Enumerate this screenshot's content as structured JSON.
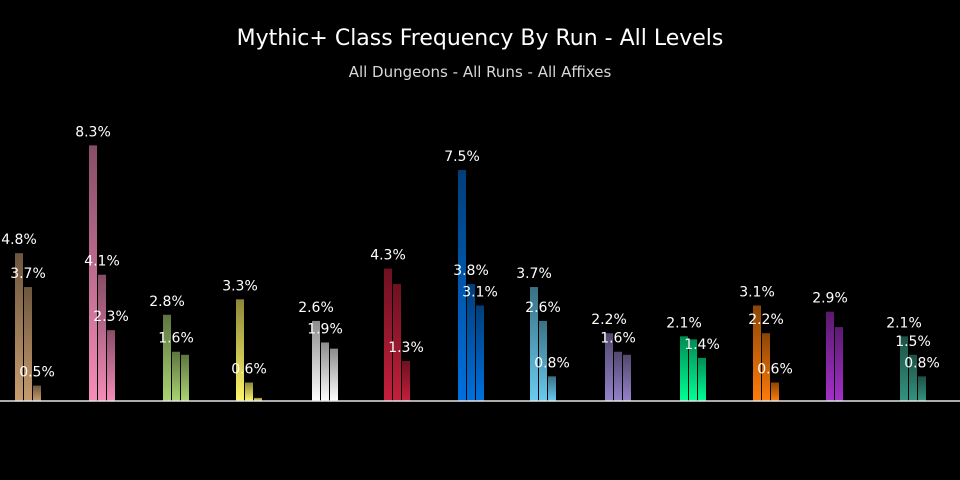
{
  "chart_data": {
    "type": "bar",
    "title": "Mythic+ Class Frequency By Run - All Levels",
    "subtitle": "All Dungeons - All Runs - All Affixes",
    "ylim": [
      0,
      10
    ],
    "value_suffix": "%",
    "groups": [
      {
        "color": "#C79C6E",
        "values": [
          4.8,
          3.7,
          0.5
        ],
        "labels": [
          "4.8%",
          "3.7%",
          "0.5%"
        ]
      },
      {
        "color": "#F58CBA",
        "values": [
          8.3,
          4.1,
          2.3
        ],
        "labels": [
          "8.3%",
          "4.1%",
          "2.3%"
        ]
      },
      {
        "color": "#ABD473",
        "values": [
          2.8,
          1.6,
          1.5
        ],
        "labels": [
          "2.8%",
          "1.6%",
          ""
        ]
      },
      {
        "color": "#FFF569",
        "values": [
          3.3,
          0.6,
          0.1
        ],
        "labels": [
          "3.3%",
          "0.6%",
          ""
        ]
      },
      {
        "color": "#FFFFFF",
        "values": [
          2.6,
          1.9,
          1.7
        ],
        "labels": [
          "2.6%",
          "1.9%",
          ""
        ]
      },
      {
        "color": "#C41F3B",
        "values": [
          4.3,
          3.8,
          1.3
        ],
        "labels": [
          "4.3%",
          "",
          "1.3%"
        ]
      },
      {
        "color": "#0070DE",
        "values": [
          7.5,
          3.8,
          3.1
        ],
        "labels": [
          "7.5%",
          "3.8%",
          "3.1%"
        ]
      },
      {
        "color": "#69CCF0",
        "values": [
          3.7,
          2.6,
          0.8
        ],
        "labels": [
          "3.7%",
          "2.6%",
          "0.8%"
        ]
      },
      {
        "color": "#9482C9",
        "values": [
          2.2,
          1.6,
          1.5
        ],
        "labels": [
          "2.2%",
          "1.6%",
          ""
        ]
      },
      {
        "color": "#00FF96",
        "values": [
          2.1,
          2.0,
          1.4
        ],
        "labels": [
          "2.1%",
          "",
          "1.4%"
        ]
      },
      {
        "color": "#FF7D0A",
        "values": [
          3.1,
          2.2,
          0.6
        ],
        "labels": [
          "3.1%",
          "2.2%",
          "0.6%"
        ]
      },
      {
        "color": "#A330C9",
        "values": [
          2.9,
          2.4
        ],
        "labels": [
          "2.9%",
          ""
        ]
      },
      {
        "color": "#33937F",
        "values": [
          2.1,
          1.5,
          0.8
        ],
        "labels": [
          "2.1%",
          "1.5%",
          "0.8%"
        ]
      }
    ]
  }
}
